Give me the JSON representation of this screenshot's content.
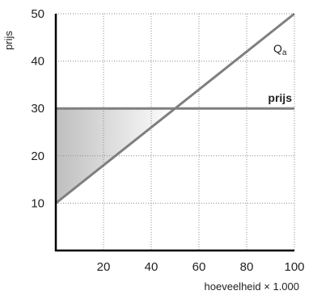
{
  "chart_data": {
    "type": "line",
    "title": "",
    "xlabel": "hoeveelheid × 1.000",
    "ylabel": "prijs",
    "xlim": [
      0,
      100
    ],
    "ylim": [
      0,
      50
    ],
    "x_ticks": [
      20,
      40,
      60,
      80,
      100
    ],
    "y_ticks": [
      10,
      20,
      30,
      40,
      50
    ],
    "grid": true,
    "grid_style": "dotted",
    "series": [
      {
        "name": "Qa",
        "label_main": "Q",
        "label_sub": "a",
        "x": [
          0,
          100
        ],
        "y": [
          10,
          50
        ],
        "color": "#7f7f7f"
      },
      {
        "name": "prijs",
        "x": [
          0,
          100
        ],
        "y": [
          30,
          30
        ],
        "color": "#7f7f7f"
      }
    ],
    "shaded_region": {
      "vertices": [
        [
          0,
          10
        ],
        [
          0,
          30
        ],
        [
          50,
          30
        ]
      ],
      "gradient": [
        "#bfbfbf",
        "#ffffff"
      ]
    }
  }
}
